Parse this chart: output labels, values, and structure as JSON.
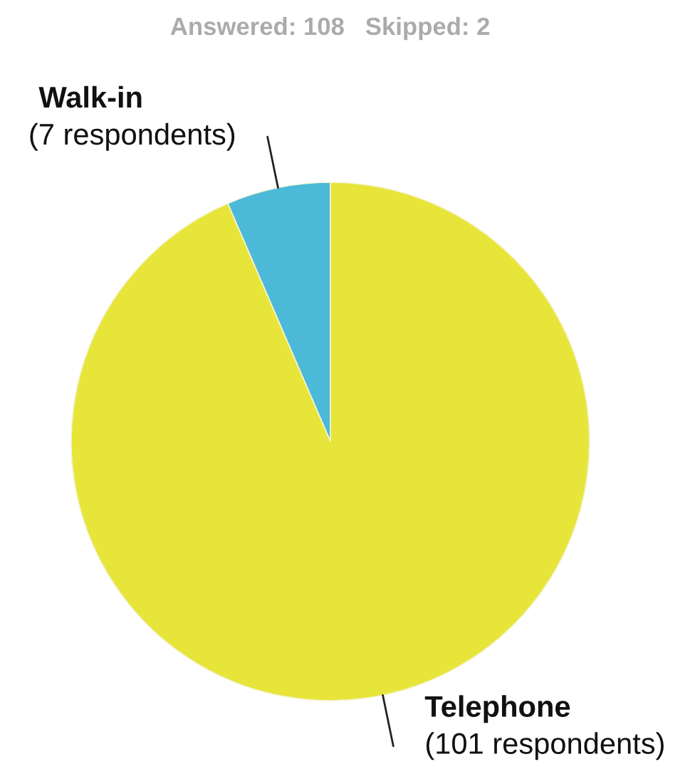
{
  "chart_data": {
    "type": "pie",
    "subtitle": "Answered: 108   Skipped: 2",
    "categories": [
      "Walk-in",
      "Telephone"
    ],
    "values": [
      7,
      101
    ],
    "colors": [
      "#4cb9d8",
      "#e8e53a"
    ],
    "value_labels": [
      "(7 respondents)",
      "(101 respondents)"
    ]
  }
}
